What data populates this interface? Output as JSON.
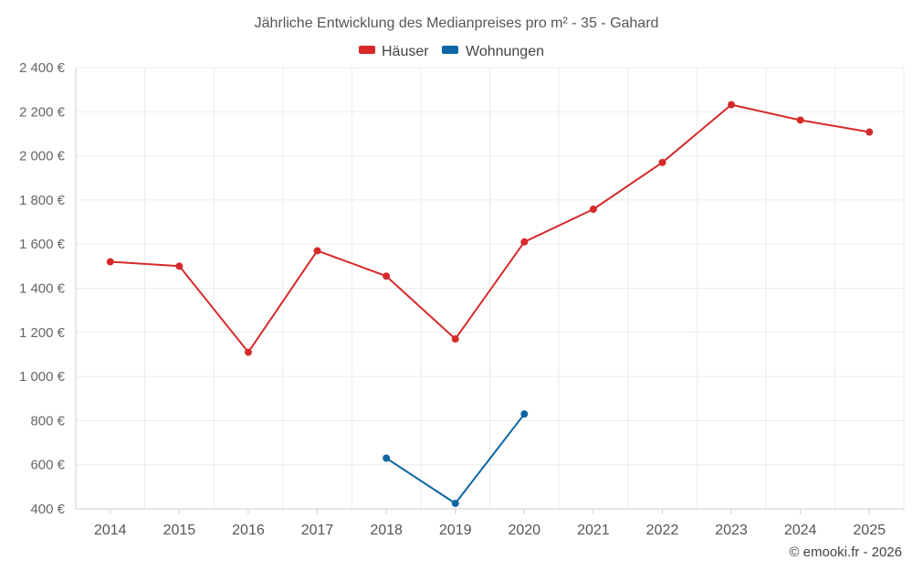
{
  "title": "Jährliche Entwicklung des Medianpreises pro m² - 35 - Gahard",
  "credit": "© emooki.fr - 2026",
  "legend": {
    "position": "top-center",
    "items": [
      {
        "label": "Häuser",
        "color": "#d62a2a"
      },
      {
        "label": "Wohnungen",
        "color": "#0d66a3"
      }
    ]
  },
  "y_tick_labels": [
    "400 €",
    "600 €",
    "800 €",
    "1 000 €",
    "1 200 €",
    "1 400 €",
    "1 600 €",
    "1 800 €",
    "2 000 €",
    "2 200 €",
    "2 400 €"
  ],
  "chart_data": {
    "type": "line",
    "title": "Jährliche Entwicklung des Medianpreises pro m² - 35 - Gahard",
    "xlabel": "",
    "ylabel": "",
    "categories": [
      "2014",
      "2015",
      "2016",
      "2017",
      "2018",
      "2019",
      "2020",
      "2021",
      "2022",
      "2023",
      "2024",
      "2025"
    ],
    "ylim": [
      400,
      2400
    ],
    "y_ticks": [
      400,
      600,
      800,
      1000,
      1200,
      1400,
      1600,
      1800,
      2000,
      2200,
      2400
    ],
    "grid": true,
    "series": [
      {
        "name": "Häuser",
        "color": "#d62a2a",
        "values": [
          1520,
          1500,
          1110,
          1570,
          1455,
          1170,
          1610,
          1758,
          1970,
          2232,
          2162,
          2108
        ]
      },
      {
        "name": "Wohnungen",
        "color": "#0d66a3",
        "values": [
          null,
          null,
          null,
          null,
          630,
          425,
          830,
          null,
          null,
          null,
          null,
          null
        ]
      }
    ]
  }
}
